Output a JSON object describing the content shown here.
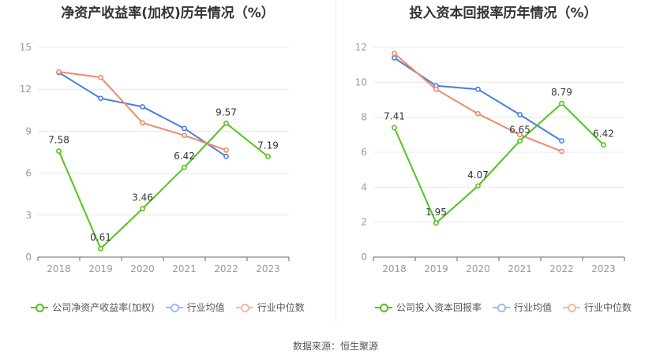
{
  "colors": {
    "company": "#52c41a",
    "avg": "#4a7de0",
    "median": "#f0896a",
    "axis": "#999999",
    "grid": "#e8e8ee"
  },
  "source_text": "数据来源：恒生聚源",
  "charts": [
    {
      "title": "净资产收益率(加权)历年情况（%）",
      "legend": [
        "公司净资产收益率(加权)",
        "行业均值",
        "行业中位数"
      ],
      "chart_data": {
        "type": "line",
        "title": "净资产收益率(加权)历年情况（%）",
        "categories": [
          "2018",
          "2019",
          "2020",
          "2021",
          "2022",
          "2023"
        ],
        "ylim": [
          0,
          15
        ],
        "yticks": [
          "0",
          "3",
          "6",
          "9",
          "12",
          "15"
        ],
        "grid": true,
        "legend_position": "bottom",
        "series": [
          {
            "name": "公司净资产收益率(加权)",
            "values": [
              7.58,
              0.61,
              3.46,
              6.42,
              9.57,
              7.19
            ],
            "labels": [
              "7.58",
              "0.61",
              "3.46",
              "6.42",
              "9.57",
              "7.19"
            ]
          },
          {
            "name": "行业均值",
            "values": [
              13.2,
              11.35,
              10.75,
              9.2,
              7.2,
              null
            ]
          },
          {
            "name": "行业中位数",
            "values": [
              13.25,
              12.85,
              9.6,
              8.7,
              7.65,
              null
            ]
          }
        ]
      }
    },
    {
      "title": "投入资本回报率历年情况（%）",
      "legend": [
        "公司投入资本回报率",
        "行业均值",
        "行业中位数"
      ],
      "chart_data": {
        "type": "line",
        "title": "投入资本回报率历年情况（%）",
        "categories": [
          "2018",
          "2019",
          "2020",
          "2021",
          "2022",
          "2023"
        ],
        "ylim": [
          0,
          12
        ],
        "yticks": [
          "0",
          "2",
          "4",
          "6",
          "8",
          "10",
          "12"
        ],
        "grid": true,
        "legend_position": "bottom",
        "series": [
          {
            "name": "公司投入资本回报率",
            "values": [
              7.41,
              1.95,
              4.07,
              6.65,
              8.79,
              6.42
            ],
            "labels": [
              "7.41",
              "1.95",
              "4.07",
              "6.65",
              "8.79",
              "6.42"
            ]
          },
          {
            "name": "行业均值",
            "values": [
              11.4,
              9.8,
              9.6,
              8.15,
              6.65,
              null
            ]
          },
          {
            "name": "行业中位数",
            "values": [
              11.65,
              9.6,
              8.2,
              7.0,
              6.05,
              null
            ]
          }
        ]
      }
    }
  ]
}
